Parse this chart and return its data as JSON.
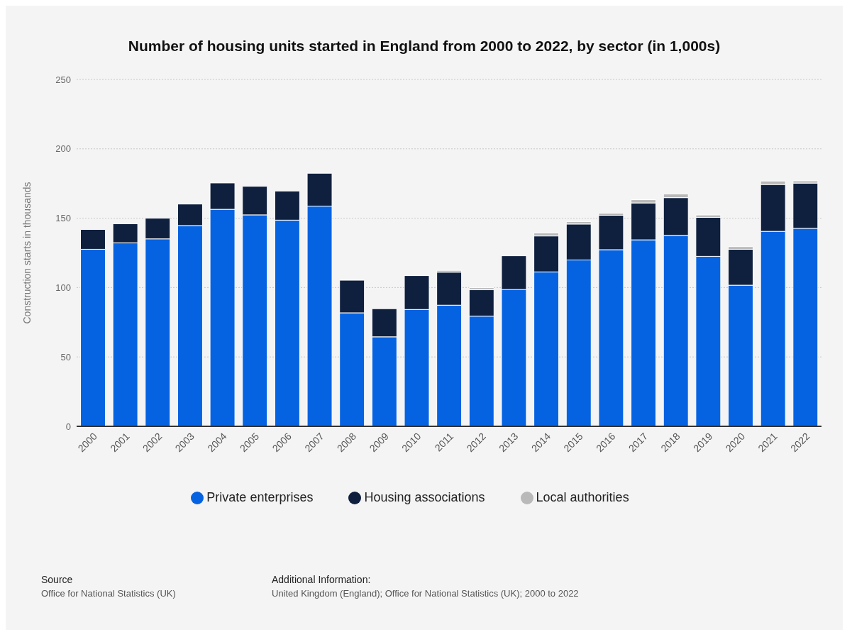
{
  "chart_data": {
    "type": "bar",
    "stacked": true,
    "title": "Number of housing units started in England from 2000 to 2022, by sector (in 1,000s)",
    "ylabel": "Construction starts in thousands",
    "categories": [
      "2000",
      "2001",
      "2002",
      "2003",
      "2004",
      "2005",
      "2006",
      "2007",
      "2008",
      "2009",
      "2010",
      "2011",
      "2012",
      "2013",
      "2014",
      "2015",
      "2016",
      "2017",
      "2018",
      "2019",
      "2020",
      "2021",
      "2022"
    ],
    "series": [
      {
        "name": "Private enterprises",
        "color": "#0563e2",
        "values": [
          127.6,
          132.3,
          135.1,
          144.7,
          156.4,
          152.4,
          148.6,
          158.7,
          81.8,
          64.5,
          84.2,
          87.3,
          79.4,
          98.6,
          111.3,
          119.9,
          127.3,
          134.4,
          137.6,
          122.5,
          101.7,
          140.5,
          142.7
        ]
      },
      {
        "name": "Housing associations",
        "color": "#0f203e",
        "values": [
          14.3,
          13.7,
          14.9,
          15.5,
          19.0,
          20.6,
          21.0,
          23.7,
          23.5,
          20.3,
          24.4,
          23.8,
          19.0,
          24.3,
          25.9,
          25.9,
          24.8,
          26.6,
          27.2,
          28.1,
          25.9,
          33.8,
          32.6
        ]
      },
      {
        "name": "Local authorities",
        "color": "#b9b9b9",
        "values": [
          null,
          null,
          null,
          null,
          null,
          null,
          null,
          null,
          null,
          null,
          null,
          1.3,
          1.5,
          null,
          2.2,
          1.7,
          1.5,
          2.3,
          2.7,
          1.7,
          1.9,
          2.5,
          1.6
        ]
      }
    ],
    "ylim": [
      0,
      250
    ],
    "yticks": [
      0,
      50,
      100,
      150,
      200,
      250
    ],
    "grid": "y",
    "legend": "bottom",
    "annotations": [
      "Source",
      "Office for National Statistics (UK)",
      "Additional Information:",
      "United Kingdom (England); Office for National Statistics (UK); 2000 to 2022"
    ]
  }
}
